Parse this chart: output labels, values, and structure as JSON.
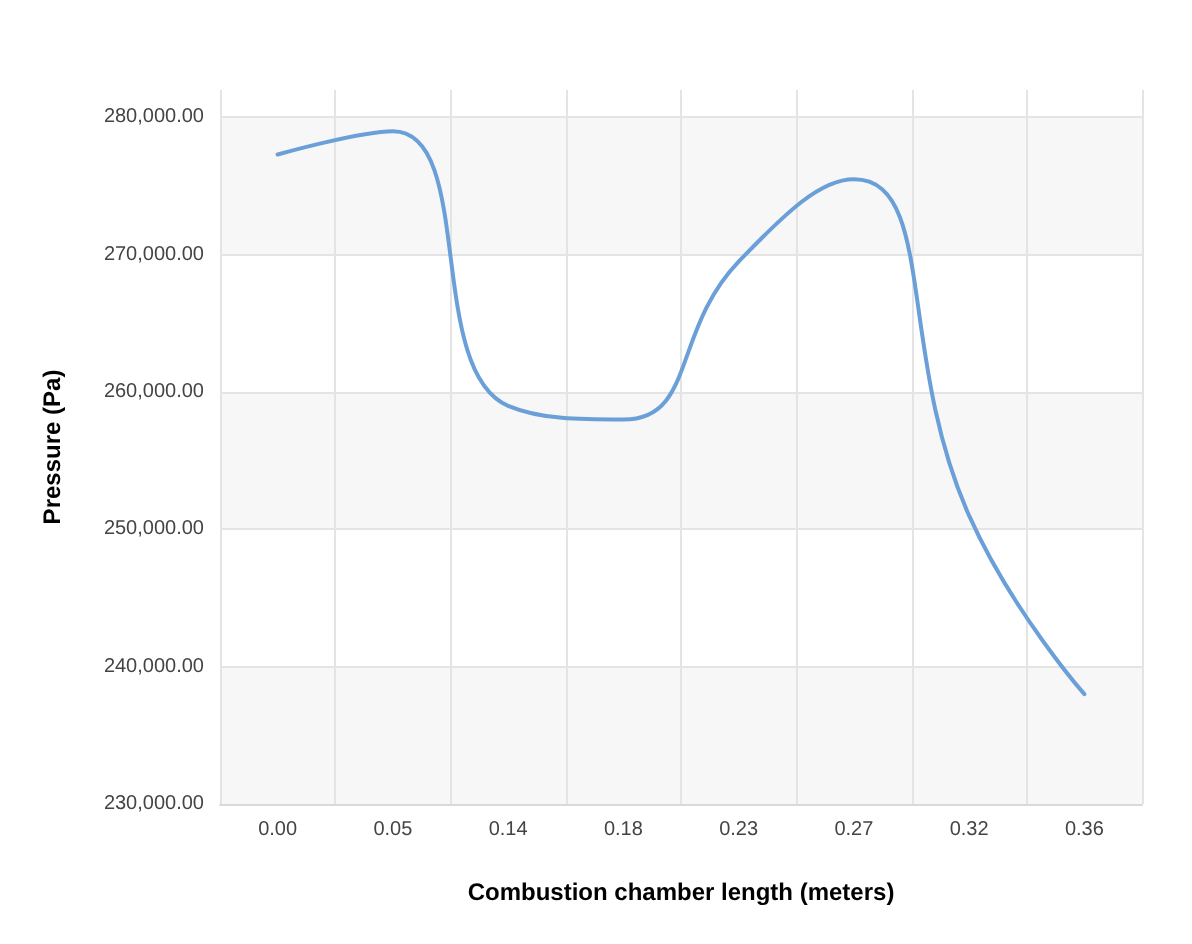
{
  "chart_data": {
    "type": "line",
    "xlabel": "Combustion chamber length (meters)",
    "ylabel": "Pressure (Pa)",
    "categories": [
      "0.00",
      "0.05",
      "0.14",
      "0.18",
      "0.23",
      "0.27",
      "0.32",
      "0.36"
    ],
    "series": [
      {
        "color": "#6a9fd8",
        "values": [
          277300,
          279000,
          259000,
          258000,
          269500,
          275500,
          251000,
          238000
        ]
      }
    ],
    "ylim": [
      230000,
      282000
    ],
    "yticks": [
      {
        "value": 230000,
        "label": "230,000.00"
      },
      {
        "value": 240000,
        "label": "240,000.00"
      },
      {
        "value": 250000,
        "label": "250,000.00"
      },
      {
        "value": 260000,
        "label": "260,000.00"
      },
      {
        "value": 270000,
        "label": "270,000.00"
      },
      {
        "value": 280000,
        "label": "280,000.00"
      }
    ],
    "grid": true,
    "marker": "none",
    "line_style": "solid"
  }
}
